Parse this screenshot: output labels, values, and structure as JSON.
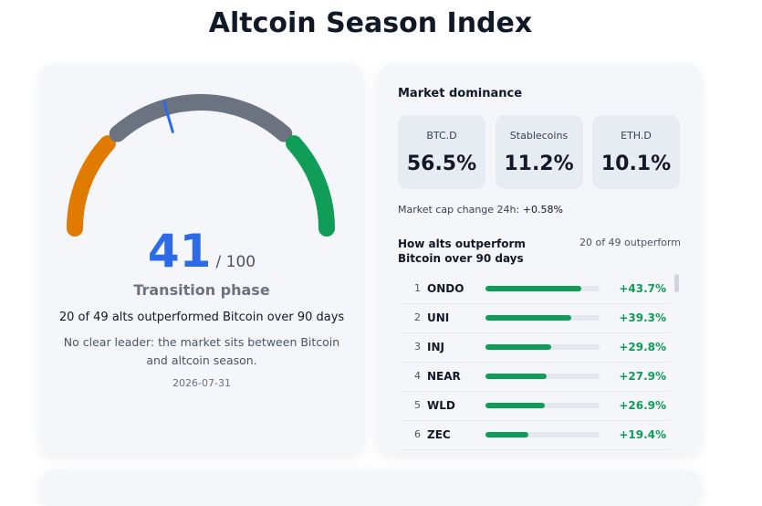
{
  "title": "Altcoin Season Index",
  "index": {
    "value": 41,
    "max": 100,
    "max_label": "/ 100",
    "phase": "Transition phase",
    "summary": "20 of 49 alts outperformed Bitcoin over 90 days",
    "description": "No clear leader: the market sits between Bitcoin and altcoin season.",
    "date": "2026-07-31"
  },
  "dominance": {
    "title": "Market dominance",
    "items": [
      {
        "label": "BTC.D",
        "value": "56.5%"
      },
      {
        "label": "Stablecoins",
        "value": "11.2%"
      },
      {
        "label": "ETH.D",
        "value": "10.1%"
      }
    ],
    "change_label": "Market cap change 24h:",
    "change": "+0.58%"
  },
  "outperform": {
    "title": "How alts outperform Bitcoin over 90 days",
    "count": "20 of 49 outperform",
    "rows": [
      {
        "rank": 1,
        "symbol": "ONDO",
        "value": 43.7,
        "label": "+43.7%"
      },
      {
        "rank": 2,
        "symbol": "UNI",
        "value": 39.3,
        "label": "+39.3%"
      },
      {
        "rank": 3,
        "symbol": "INJ",
        "value": 29.8,
        "label": "+29.8%"
      },
      {
        "rank": 4,
        "symbol": "NEAR",
        "value": 27.9,
        "label": "+27.9%"
      },
      {
        "rank": 5,
        "symbol": "WLD",
        "value": 26.9,
        "label": "+26.9%"
      },
      {
        "rank": 6,
        "symbol": "ZEC",
        "value": 19.4,
        "label": "+19.4%"
      }
    ]
  }
}
